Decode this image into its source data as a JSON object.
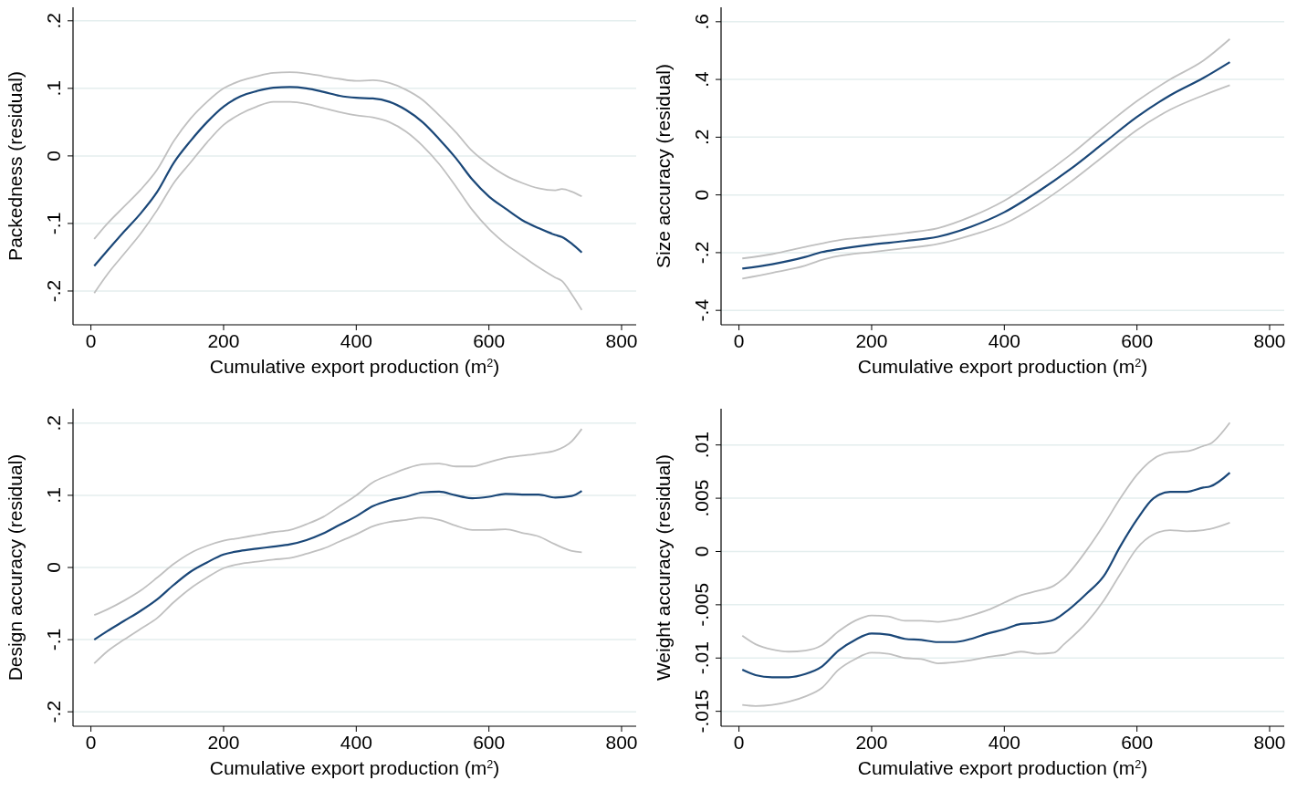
{
  "chart_data": [
    {
      "type": "line",
      "xlabel": "Cumulative export production (m$^{2}$)",
      "ylabel": "Packedness (residual)",
      "x": [
        5,
        25,
        50,
        75,
        100,
        125,
        150,
        175,
        200,
        225,
        250,
        275,
        300,
        325,
        350,
        375,
        400,
        425,
        450,
        475,
        500,
        525,
        550,
        575,
        600,
        625,
        650,
        675,
        700,
        710,
        725,
        740
      ],
      "xlim": [
        -27,
        822
      ],
      "xticks": [
        0,
        200,
        400,
        600,
        800
      ],
      "ylim": [
        -0.25,
        0.22
      ],
      "yticks": [
        {
          "value": -0.2,
          "label": "-.2"
        },
        {
          "value": -0.1,
          "label": "-.1"
        },
        {
          "value": 0,
          "label": "0"
        },
        {
          "value": 0.1,
          "label": ".1"
        },
        {
          "value": 0.2,
          "label": ".2"
        }
      ],
      "grid": "y",
      "series": [
        {
          "color": "#c0c0c0",
          "values": [
            -0.123,
            -0.1,
            -0.075,
            -0.05,
            -0.02,
            0.022,
            0.055,
            0.08,
            0.1,
            0.111,
            0.118,
            0.123,
            0.124,
            0.122,
            0.118,
            0.114,
            0.111,
            0.112,
            0.108,
            0.098,
            0.083,
            0.06,
            0.035,
            0.007,
            -0.013,
            -0.029,
            -0.04,
            -0.048,
            -0.051,
            -0.049,
            -0.053,
            -0.06
          ]
        },
        {
          "color": "#c0c0c0",
          "values": [
            -0.203,
            -0.175,
            -0.145,
            -0.115,
            -0.08,
            -0.04,
            -0.01,
            0.02,
            0.046,
            0.062,
            0.073,
            0.08,
            0.08,
            0.077,
            0.071,
            0.065,
            0.06,
            0.057,
            0.05,
            0.036,
            0.015,
            -0.012,
            -0.045,
            -0.08,
            -0.108,
            -0.13,
            -0.148,
            -0.165,
            -0.18,
            -0.185,
            -0.205,
            -0.228
          ]
        },
        {
          "color": "#1a4778",
          "values": [
            -0.163,
            -0.14,
            -0.112,
            -0.085,
            -0.053,
            -0.01,
            0.022,
            0.05,
            0.073,
            0.088,
            0.096,
            0.101,
            0.102,
            0.1,
            0.095,
            0.089,
            0.086,
            0.085,
            0.08,
            0.068,
            0.05,
            0.025,
            -0.003,
            -0.035,
            -0.06,
            -0.078,
            -0.095,
            -0.107,
            -0.117,
            -0.12,
            -0.13,
            -0.143
          ]
        }
      ]
    },
    {
      "type": "line",
      "xlabel": "Cumulative export production (m$^{2}$)",
      "ylabel": "Size accuracy (residual)",
      "x": [
        5,
        50,
        100,
        125,
        150,
        200,
        250,
        300,
        350,
        400,
        450,
        500,
        550,
        600,
        650,
        700,
        740
      ],
      "xlim": [
        -27,
        822
      ],
      "xticks": [
        0,
        200,
        400,
        600,
        800
      ],
      "ylim": [
        -0.45,
        0.65
      ],
      "yticks": [
        {
          "value": -0.4,
          "label": "-.4"
        },
        {
          "value": -0.2,
          "label": "-.2"
        },
        {
          "value": 0,
          "label": "0"
        },
        {
          "value": 0.2,
          "label": ".2"
        },
        {
          "value": 0.4,
          "label": ".4"
        },
        {
          "value": 0.6,
          "label": ".6"
        }
      ],
      "grid": "y",
      "series": [
        {
          "color": "#c0c0c0",
          "values": [
            -0.22,
            -0.205,
            -0.18,
            -0.168,
            -0.157,
            -0.145,
            -0.132,
            -0.115,
            -0.075,
            -0.02,
            0.055,
            0.14,
            0.235,
            0.325,
            0.4,
            0.465,
            0.54
          ]
        },
        {
          "color": "#c0c0c0",
          "values": [
            -0.29,
            -0.27,
            -0.245,
            -0.225,
            -0.212,
            -0.198,
            -0.185,
            -0.17,
            -0.14,
            -0.1,
            -0.035,
            0.045,
            0.135,
            0.225,
            0.295,
            0.345,
            0.38
          ]
        },
        {
          "color": "#1a4778",
          "values": [
            -0.255,
            -0.24,
            -0.215,
            -0.198,
            -0.188,
            -0.172,
            -0.16,
            -0.145,
            -0.11,
            -0.06,
            0.01,
            0.09,
            0.18,
            0.27,
            0.345,
            0.405,
            0.46
          ]
        }
      ]
    },
    {
      "type": "line",
      "xlabel": "Cumulative export production (m$^{2}$)",
      "ylabel": "Design accuracy (residual)",
      "x": [
        5,
        25,
        50,
        75,
        100,
        125,
        150,
        175,
        200,
        225,
        250,
        275,
        300,
        325,
        350,
        375,
        400,
        425,
        450,
        475,
        500,
        525,
        550,
        575,
        600,
        625,
        650,
        675,
        700,
        725,
        740
      ],
      "xlim": [
        -27,
        822
      ],
      "xticks": [
        0,
        200,
        400,
        600,
        800
      ],
      "ylim": [
        -0.22,
        0.22
      ],
      "yticks": [
        {
          "value": -0.2,
          "label": "-.2"
        },
        {
          "value": -0.1,
          "label": "-.1"
        },
        {
          "value": 0,
          "label": "0"
        },
        {
          "value": 0.1,
          "label": ".1"
        },
        {
          "value": 0.2,
          "label": ".2"
        }
      ],
      "grid": "y",
      "series": [
        {
          "color": "#c0c0c0",
          "values": [
            -0.066,
            -0.058,
            -0.046,
            -0.032,
            -0.014,
            0.005,
            0.02,
            0.03,
            0.037,
            0.041,
            0.045,
            0.049,
            0.052,
            0.06,
            0.07,
            0.085,
            0.1,
            0.118,
            0.128,
            0.137,
            0.143,
            0.144,
            0.14,
            0.14,
            0.146,
            0.152,
            0.155,
            0.158,
            0.162,
            0.175,
            0.192
          ]
        },
        {
          "color": "#c0c0c0",
          "values": [
            -0.133,
            -0.116,
            -0.1,
            -0.085,
            -0.07,
            -0.048,
            -0.029,
            -0.014,
            -0.001,
            0.005,
            0.008,
            0.011,
            0.013,
            0.019,
            0.026,
            0.036,
            0.046,
            0.057,
            0.063,
            0.066,
            0.069,
            0.066,
            0.058,
            0.052,
            0.052,
            0.053,
            0.048,
            0.043,
            0.032,
            0.023,
            0.021
          ]
        },
        {
          "color": "#1a4778",
          "values": [
            -0.1,
            -0.088,
            -0.074,
            -0.06,
            -0.044,
            -0.024,
            -0.006,
            0.007,
            0.018,
            0.023,
            0.026,
            0.029,
            0.032,
            0.038,
            0.047,
            0.059,
            0.071,
            0.085,
            0.093,
            0.098,
            0.104,
            0.105,
            0.1,
            0.096,
            0.098,
            0.102,
            0.101,
            0.101,
            0.097,
            0.099,
            0.106
          ]
        }
      ]
    },
    {
      "type": "line",
      "xlabel": "Cumulative export production (m$^{2}$)",
      "ylabel": "Weight accuracy (residual)",
      "x": [
        5,
        25,
        50,
        75,
        100,
        125,
        150,
        175,
        200,
        225,
        250,
        275,
        300,
        325,
        350,
        375,
        400,
        425,
        450,
        475,
        490,
        525,
        550,
        575,
        600,
        625,
        650,
        675,
        700,
        710,
        740
      ],
      "xlim": [
        -27,
        822
      ],
      "xticks": [
        0,
        200,
        400,
        600,
        800
      ],
      "ylim": [
        -0.0164,
        0.0134
      ],
      "yticks": [
        {
          "value": -0.015,
          "label": "-.015"
        },
        {
          "value": -0.01,
          "label": "-.01"
        },
        {
          "value": -0.005,
          "label": "-.005"
        },
        {
          "value": 0,
          "label": "0"
        },
        {
          "value": 0.005,
          "label": ".005"
        },
        {
          "value": 0.01,
          "label": ".01"
        }
      ],
      "grid": "y",
      "series": [
        {
          "color": "#c0c0c0",
          "values": [
            -0.0079,
            -0.0087,
            -0.0092,
            -0.0094,
            -0.0093,
            -0.0088,
            -0.0075,
            -0.0065,
            -0.006,
            -0.0061,
            -0.0065,
            -0.0065,
            -0.0066,
            -0.0064,
            -0.006,
            -0.0055,
            -0.0048,
            -0.0041,
            -0.0037,
            -0.0032,
            -0.0025,
            0.0002,
            0.0025,
            0.005,
            0.0072,
            0.0087,
            0.0093,
            0.0094,
            0.0099,
            0.0101,
            0.0121
          ]
        },
        {
          "color": "#c0c0c0",
          "values": [
            -0.0144,
            -0.0145,
            -0.0144,
            -0.0141,
            -0.0136,
            -0.0128,
            -0.0111,
            -0.0101,
            -0.0095,
            -0.0096,
            -0.01,
            -0.0101,
            -0.0105,
            -0.0104,
            -0.0102,
            -0.0099,
            -0.0097,
            -0.0094,
            -0.0096,
            -0.0095,
            -0.0087,
            -0.0066,
            -0.0046,
            -0.0021,
            0.0003,
            0.0016,
            0.002,
            0.0019,
            0.002,
            0.0021,
            0.0027
          ]
        },
        {
          "color": "#1a4778",
          "values": [
            -0.0111,
            -0.0116,
            -0.0118,
            -0.0118,
            -0.0115,
            -0.0108,
            -0.0093,
            -0.0083,
            -0.0077,
            -0.0078,
            -0.0082,
            -0.0083,
            -0.0085,
            -0.0085,
            -0.0082,
            -0.0077,
            -0.0073,
            -0.0068,
            -0.0067,
            -0.0064,
            -0.0058,
            -0.0039,
            -0.0023,
            0.0005,
            0.003,
            0.005,
            0.0056,
            0.0056,
            0.006,
            0.0061,
            0.0074
          ]
        }
      ]
    }
  ]
}
